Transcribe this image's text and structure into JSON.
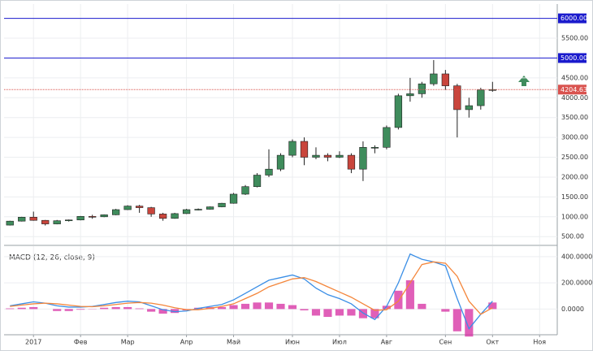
{
  "chart_data": [
    {
      "type": "candlestick",
      "categories": [
        null,
        null,
        "2017",
        null,
        null,
        null,
        "Фев",
        null,
        null,
        null,
        "Мар",
        null,
        null,
        null,
        null,
        "Апр",
        null,
        null,
        null,
        "Май",
        null,
        null,
        null,
        null,
        "Июн",
        null,
        null,
        null,
        "Июл",
        null,
        null,
        null,
        "Авг",
        null,
        null,
        null,
        null,
        "Сен",
        null,
        null,
        null,
        "Окт",
        null,
        null,
        null,
        "Ноя",
        null
      ],
      "open": [
        790,
        890,
        990,
        910,
        820,
        900,
        920,
        1010,
        1000,
        1050,
        1180,
        1270,
        1230,
        1070,
        960,
        1080,
        1180,
        1190,
        1250,
        1340,
        1570,
        1760,
        2050,
        2200,
        2550,
        2900,
        2500,
        2550,
        2500,
        2550,
        2200,
        2750,
        2750,
        3250,
        4050,
        4100,
        4350,
        4600,
        4300,
        3700,
        3800,
        4200,
        null,
        null,
        null,
        null,
        null
      ],
      "high": [
        900,
        1000,
        1130,
        920,
        920,
        930,
        1020,
        1050,
        1060,
        1200,
        1290,
        1300,
        1250,
        1100,
        1100,
        1200,
        1210,
        1260,
        1350,
        1600,
        1800,
        2100,
        2700,
        2600,
        2950,
        3000,
        2750,
        2600,
        2650,
        2600,
        2900,
        2800,
        3300,
        4100,
        4500,
        4400,
        4950,
        4700,
        4350,
        4000,
        4250,
        4400,
        null,
        null,
        null,
        null,
        null
      ],
      "low": [
        780,
        880,
        900,
        780,
        810,
        880,
        910,
        950,
        990,
        1040,
        1170,
        1100,
        1000,
        900,
        950,
        1070,
        1160,
        1180,
        1240,
        1330,
        1550,
        1740,
        2000,
        2150,
        2500,
        2300,
        2450,
        2400,
        2480,
        2100,
        1900,
        2600,
        2700,
        3200,
        3900,
        4000,
        4300,
        4200,
        3000,
        3500,
        3700,
        4150,
        null,
        null,
        null,
        null,
        null
      ],
      "close": [
        890,
        990,
        910,
        820,
        900,
        920,
        1010,
        1000,
        1050,
        1180,
        1270,
        1230,
        1070,
        960,
        1080,
        1180,
        1190,
        1250,
        1340,
        1570,
        1760,
        2050,
        2200,
        2550,
        2900,
        2500,
        2550,
        2500,
        2550,
        2200,
        2750,
        2750,
        3250,
        4050,
        4100,
        4350,
        4600,
        4300,
        3700,
        3800,
        4200,
        4204.63,
        null,
        null,
        null,
        null,
        null
      ],
      "up_color": "#3f8c5c",
      "down_color": "#c9453c",
      "ylim": [
        300,
        6360
      ],
      "yticks": [
        {
          "value": 500,
          "label": "500.00"
        },
        {
          "value": 1000,
          "label": "1000.00"
        },
        {
          "value": 1500,
          "label": "1500.00"
        },
        {
          "value": 2000,
          "label": "2000.00"
        },
        {
          "value": 2500,
          "label": "2500.00"
        },
        {
          "value": 3000,
          "label": "3000.00"
        },
        {
          "value": 3500,
          "label": "3500.00"
        },
        {
          "value": 4000,
          "label": "4000.00"
        },
        {
          "value": 4500,
          "label": "4500.00"
        },
        {
          "value": 5500,
          "label": "5500.00"
        }
      ],
      "horizontal_lines": [
        {
          "value": 6000,
          "label": "6000.00",
          "color": "#1a1acd",
          "style": "solid"
        },
        {
          "value": 5000,
          "label": "5000.00",
          "color": "#1a1acd",
          "style": "solid"
        },
        {
          "value": 4204.63,
          "label": "4204.63",
          "color": "#d9534f",
          "style": "dotted"
        }
      ],
      "grid": true
    },
    {
      "type": "macd",
      "title": "MACD (12, 26, close, 9)",
      "series": [
        {
          "kind": "bar",
          "color": "#d62aa0",
          "values": [
            5,
            10,
            15,
            0,
            -15,
            -15,
            -5,
            2,
            10,
            15,
            15,
            5,
            -20,
            -35,
            -30,
            -10,
            10,
            15,
            15,
            30,
            40,
            50,
            50,
            40,
            30,
            -10,
            -50,
            -60,
            -50,
            -50,
            -70,
            -70,
            25,
            140,
            220,
            40,
            0,
            -20,
            -170,
            -210,
            0,
            50,
            null,
            null,
            null,
            null,
            null
          ]
        },
        {
          "kind": "line",
          "color": "#3a8ee6",
          "values": [
            25,
            40,
            55,
            45,
            25,
            15,
            15,
            20,
            35,
            50,
            60,
            55,
            25,
            -5,
            -20,
            -15,
            5,
            20,
            35,
            70,
            120,
            170,
            220,
            240,
            260,
            230,
            160,
            110,
            80,
            40,
            -30,
            -80,
            20,
            200,
            420,
            380,
            360,
            330,
            80,
            -150,
            -40,
            60,
            null,
            null,
            null,
            null,
            null
          ]
        },
        {
          "kind": "line",
          "color": "#f4863b",
          "values": [
            20,
            30,
            40,
            45,
            40,
            30,
            20,
            18,
            25,
            35,
            45,
            50,
            45,
            30,
            10,
            -5,
            -5,
            5,
            20,
            40,
            80,
            120,
            170,
            200,
            230,
            240,
            210,
            170,
            130,
            90,
            40,
            -10,
            -5,
            60,
            200,
            340,
            360,
            350,
            250,
            60,
            -40,
            10,
            null,
            null,
            null,
            null,
            null
          ]
        }
      ],
      "ylim": [
        -190,
        480
      ],
      "yticks": [
        {
          "value": 0,
          "label": "0.0000"
        },
        {
          "value": 200,
          "label": "200.0000"
        },
        {
          "value": 400,
          "label": "400.0000"
        }
      ],
      "grid": true
    }
  ]
}
